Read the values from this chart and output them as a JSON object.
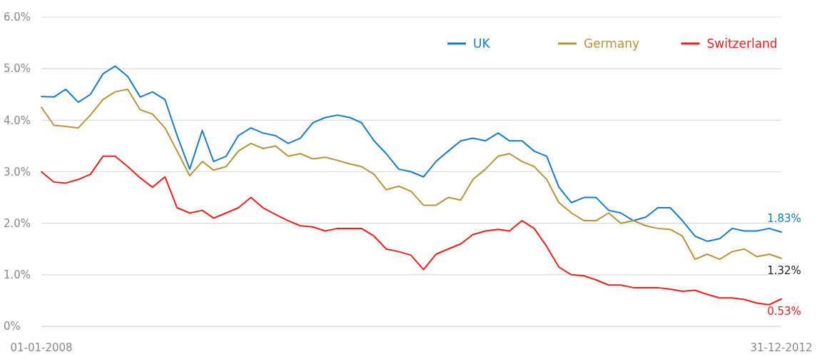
{
  "chart_data": {
    "type": "line",
    "x": [
      "2008-01-01",
      "2008-02-01",
      "2008-03-01",
      "2008-04-01",
      "2008-05-01",
      "2008-06-01",
      "2008-07-01",
      "2008-08-01",
      "2008-09-01",
      "2008-10-01",
      "2008-11-01",
      "2008-12-01",
      "2009-01-01",
      "2009-02-01",
      "2009-03-01",
      "2009-04-01",
      "2009-05-01",
      "2009-06-01",
      "2009-07-01",
      "2009-08-01",
      "2009-09-01",
      "2009-10-01",
      "2009-11-01",
      "2009-12-01",
      "2010-01-01",
      "2010-02-01",
      "2010-03-01",
      "2010-04-01",
      "2010-05-01",
      "2010-06-01",
      "2010-07-01",
      "2010-08-01",
      "2010-09-01",
      "2010-10-01",
      "2010-11-01",
      "2010-12-01",
      "2011-01-01",
      "2011-02-01",
      "2011-03-01",
      "2011-04-01",
      "2011-05-01",
      "2011-06-01",
      "2011-07-01",
      "2011-08-01",
      "2011-09-01",
      "2011-10-01",
      "2011-11-01",
      "2011-12-01",
      "2012-01-01",
      "2012-02-01",
      "2012-03-01",
      "2012-04-01",
      "2012-05-01",
      "2012-06-01",
      "2012-07-01",
      "2012-08-01",
      "2012-09-01",
      "2012-10-01",
      "2012-11-01",
      "2012-12-01",
      "2012-12-31"
    ],
    "series": [
      {
        "name": "UK",
        "color": "#1a7cc0",
        "values": [
          4.46,
          4.45,
          4.6,
          4.35,
          4.5,
          4.9,
          5.05,
          4.85,
          4.45,
          4.55,
          4.4,
          3.7,
          3.05,
          3.8,
          3.2,
          3.3,
          3.7,
          3.85,
          3.75,
          3.7,
          3.55,
          3.65,
          3.95,
          4.05,
          4.1,
          4.05,
          3.95,
          3.6,
          3.35,
          3.05,
          3.0,
          2.9,
          3.2,
          3.4,
          3.6,
          3.65,
          3.6,
          3.75,
          3.6,
          3.6,
          3.4,
          3.3,
          2.7,
          2.4,
          2.5,
          2.5,
          2.25,
          2.2,
          2.05,
          2.12,
          2.3,
          2.3,
          2.05,
          1.75,
          1.65,
          1.7,
          1.9,
          1.85,
          1.85,
          1.9,
          1.83
        ]
      },
      {
        "name": "Germany",
        "color": "#b5943c",
        "values": [
          4.25,
          3.9,
          3.88,
          3.85,
          4.1,
          4.4,
          4.55,
          4.6,
          4.2,
          4.12,
          3.85,
          3.4,
          2.92,
          3.2,
          3.03,
          3.1,
          3.4,
          3.55,
          3.45,
          3.5,
          3.3,
          3.35,
          3.25,
          3.28,
          3.22,
          3.15,
          3.1,
          2.95,
          2.65,
          2.72,
          2.62,
          2.35,
          2.35,
          2.5,
          2.45,
          2.85,
          3.05,
          3.3,
          3.35,
          3.2,
          3.1,
          2.85,
          2.4,
          2.2,
          2.05,
          2.05,
          2.2,
          2.0,
          2.05,
          1.95,
          1.9,
          1.88,
          1.75,
          1.3,
          1.4,
          1.3,
          1.45,
          1.5,
          1.35,
          1.4,
          1.32
        ]
      },
      {
        "name": "Switzerland",
        "color": "#e8231f",
        "values": [
          3.0,
          2.8,
          2.78,
          2.85,
          2.95,
          3.3,
          3.3,
          3.1,
          2.88,
          2.7,
          2.9,
          2.3,
          2.2,
          2.25,
          2.1,
          2.2,
          2.3,
          2.5,
          2.3,
          2.17,
          2.05,
          1.95,
          1.93,
          1.85,
          1.9,
          1.9,
          1.9,
          1.75,
          1.5,
          1.45,
          1.38,
          1.1,
          1.4,
          1.5,
          1.6,
          1.78,
          1.85,
          1.88,
          1.85,
          2.05,
          1.9,
          1.55,
          1.15,
          1.0,
          0.98,
          0.9,
          0.8,
          0.8,
          0.75,
          0.75,
          0.75,
          0.72,
          0.68,
          0.7,
          0.62,
          0.55,
          0.55,
          0.52,
          0.45,
          0.42,
          0.53
        ]
      }
    ],
    "xlim": [
      "2008-01-01",
      "2012-12-31"
    ],
    "xticks": [
      {
        "value": "2008-01-01",
        "label": "01-01-2008"
      },
      {
        "value": "2012-12-31",
        "label": "31-12-2012"
      }
    ],
    "ylim": [
      0,
      6
    ],
    "yticks": [
      {
        "value": 0,
        "label": "0%"
      },
      {
        "value": 1,
        "label": "1.0%"
      },
      {
        "value": 2,
        "label": "2.0%"
      },
      {
        "value": 3,
        "label": "3.0%"
      },
      {
        "value": 4,
        "label": "4.0%"
      },
      {
        "value": 5,
        "label": "5.0%"
      },
      {
        "value": 6,
        "label": "6.0%"
      }
    ],
    "grid": "y",
    "legend": "top right",
    "annotations": [
      {
        "text": "1.83%",
        "x": "2012-12-31",
        "y": 1.83
      },
      {
        "text": "1.32%",
        "x": "2012-12-31",
        "y": 1.32
      },
      {
        "text": "0.53%",
        "x": "2012-12-31",
        "y": 0.53
      }
    ]
  }
}
